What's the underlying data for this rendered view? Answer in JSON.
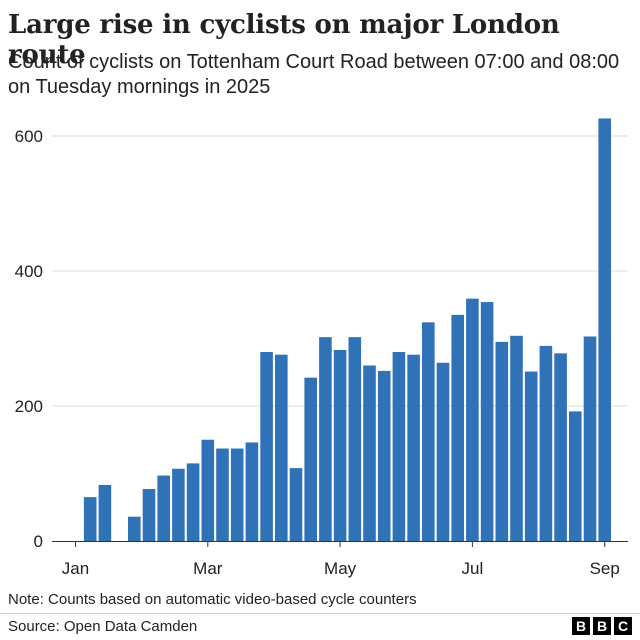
{
  "header": {
    "title": "Large rise in cyclists on major London route",
    "subtitle": "Count of cyclists on Tottenham Court Road between 07:00 and 08:00 on Tuesday mornings in 2025"
  },
  "footer": {
    "note": "Note: Counts based on automatic video-based cycle counters",
    "source": "Source: Open Data Camden",
    "logo_letters": [
      "B",
      "B",
      "C"
    ]
  },
  "chart_data": {
    "type": "bar",
    "title": "Large rise in cyclists on major London route",
    "subtitle": "Count of cyclists on Tottenham Court Road between 07:00 and 08:00 on Tuesday mornings in 2025",
    "xlabel": "",
    "ylabel": "",
    "bar_color": "#3072b8",
    "grid_color": "#dddddd",
    "ylim": [
      0,
      640
    ],
    "y_ticks": [
      0,
      200,
      400,
      600
    ],
    "x_tick_labels": [
      "Jan",
      "Mar",
      "May",
      "Jul",
      "Sep"
    ],
    "x_tick_positions": [
      0,
      9,
      18,
      27,
      36
    ],
    "values": [
      null,
      65,
      83,
      null,
      36,
      77,
      97,
      107,
      115,
      150,
      137,
      137,
      146,
      280,
      276,
      108,
      242,
      302,
      283,
      302,
      260,
      252,
      280,
      276,
      324,
      264,
      335,
      359,
      354,
      295,
      304,
      251,
      289,
      278,
      192,
      303,
      626
    ]
  }
}
